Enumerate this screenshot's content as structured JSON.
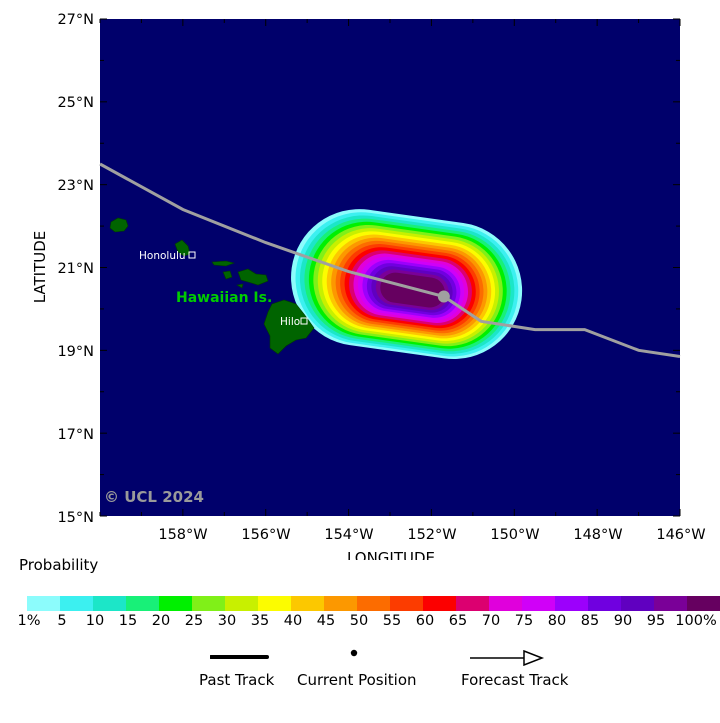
{
  "map": {
    "watermark": "© UCL 2024",
    "place_labels": {
      "honolulu": "Honolulu",
      "hawaiian_islands": "Hawaiian Is.",
      "hilo": "Hilo"
    },
    "colors": {
      "ocean": "#00006b",
      "land": "#006400",
      "island_label": "#00cc00",
      "track": "#a0a0a0",
      "watermark": "#9a9a9a"
    }
  },
  "axes": {
    "xlabel": "LONGITUDE",
    "ylabel": "LATITUDE",
    "x_ticks": [
      "158°W",
      "156°W",
      "154°W",
      "152°W",
      "150°W",
      "148°W",
      "146°W"
    ],
    "y_ticks": [
      "27°N",
      "25°N",
      "23°N",
      "21°N",
      "19°N",
      "17°N",
      "15°N"
    ]
  },
  "legend": {
    "title": "Probability",
    "bins": [
      "1%",
      "5",
      "10",
      "15",
      "20",
      "25",
      "30",
      "35",
      "40",
      "45",
      "50",
      "55",
      "60",
      "65",
      "70",
      "75",
      "80",
      "85",
      "90",
      "95",
      "100%"
    ],
    "colors": [
      "#8cfcfc",
      "#3cf0f0",
      "#1ce6c8",
      "#18f078",
      "#00f000",
      "#80f018",
      "#c8f000",
      "#fcfc00",
      "#fcc800",
      "#fc9800",
      "#fc6c00",
      "#fc3c00",
      "#fc0000",
      "#dc0070",
      "#e000dc",
      "#d000f8",
      "#9c00fc",
      "#7000e0",
      "#6000c0",
      "#7a0098",
      "#660060"
    ],
    "past_track": "Past Track",
    "current_position": "Current Position",
    "forecast_track": "Forecast Track"
  },
  "chart_data": {
    "type": "heatmap",
    "title": "",
    "xlabel": "LONGITUDE",
    "ylabel": "LATITUDE",
    "xlim": [
      -160,
      -146
    ],
    "ylim": [
      15,
      27
    ],
    "current_position": {
      "lon": -151.7,
      "lat": 20.3
    },
    "forecast_track": [
      {
        "lon": -160.0,
        "lat": 23.5
      },
      {
        "lon": -158.0,
        "lat": 22.4
      },
      {
        "lon": -156.0,
        "lat": 21.6
      },
      {
        "lon": -154.0,
        "lat": 20.9
      },
      {
        "lon": -151.7,
        "lat": 20.3
      },
      {
        "lon": -150.8,
        "lat": 19.7
      },
      {
        "lon": -149.5,
        "lat": 19.5
      },
      {
        "lon": -148.3,
        "lat": 19.5
      },
      {
        "lon": -147.0,
        "lat": 19.0
      },
      {
        "lon": -146.0,
        "lat": 18.85
      }
    ],
    "probability_swath": {
      "center": {
        "lon": -152.6,
        "lat": 20.6
      },
      "outer_extent_lon": [
        -155.3,
        -149.7
      ],
      "outer_extent_lat": [
        19.0,
        22.3
      ],
      "peak_percent": 100
    }
  }
}
